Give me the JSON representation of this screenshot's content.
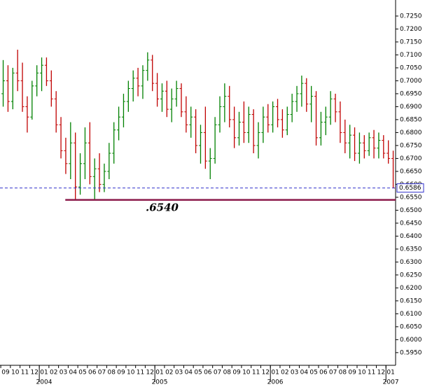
{
  "chart_data": {
    "type": "ohlc",
    "up_color": "#008000",
    "down_color": "#c00000",
    "x": [
      0.25,
      0.75,
      1.25,
      1.75,
      2.25,
      2.75,
      3.25,
      3.75,
      4.25,
      4.75,
      5.25,
      5.75,
      6.25,
      6.75,
      7.25,
      7.75,
      8.25,
      8.75,
      9.25,
      9.75,
      10.25,
      10.75,
      11.25,
      11.75,
      12.25,
      12.75,
      13.25,
      13.75,
      14.25,
      14.75,
      15.25,
      15.75,
      16.25,
      16.75,
      17.25,
      17.75,
      18.25,
      18.75,
      19.25,
      19.75,
      20.25,
      20.75,
      21.25,
      21.75,
      22.25,
      22.75,
      23.25,
      23.75,
      24.25,
      24.75,
      25.25,
      25.75,
      26.25,
      26.75,
      27.25,
      27.75,
      28.25,
      28.75,
      29.25,
      29.75,
      30.25,
      30.75,
      31.25,
      31.75,
      32.25,
      32.75,
      33.25,
      33.75,
      34.25,
      34.75,
      35.25,
      35.75,
      36.25,
      36.75,
      37.25,
      37.75,
      38.25,
      38.75,
      39.25,
      39.75,
      40.25,
      40.75
    ],
    "open": [
      0.695,
      0.7,
      0.692,
      0.703,
      0.7,
      0.69,
      0.686,
      0.698,
      0.703,
      0.706,
      0.7,
      0.693,
      0.683,
      0.673,
      0.668,
      0.676,
      0.659,
      0.668,
      0.676,
      0.663,
      0.666,
      0.66,
      0.665,
      0.672,
      0.681,
      0.686,
      0.692,
      0.697,
      0.701,
      0.698,
      0.704,
      0.708,
      0.699,
      0.693,
      0.696,
      0.689,
      0.693,
      0.697,
      0.688,
      0.683,
      0.686,
      0.675,
      0.68,
      0.669,
      0.67,
      0.683,
      0.69,
      0.694,
      0.685,
      0.678,
      0.684,
      0.68,
      0.687,
      0.675,
      0.68,
      0.686,
      0.683,
      0.69,
      0.685,
      0.681,
      0.687,
      0.692,
      0.695,
      0.699,
      0.691,
      0.694,
      0.678,
      0.684,
      0.686,
      0.693,
      0.688,
      0.68,
      0.676,
      0.679,
      0.672,
      0.676,
      0.673,
      0.678,
      0.674,
      0.677,
      0.672,
      0.67
    ],
    "high": [
      0.708,
      0.706,
      0.705,
      0.712,
      0.707,
      0.694,
      0.7,
      0.706,
      0.709,
      0.709,
      0.704,
      0.696,
      0.686,
      0.678,
      0.684,
      0.68,
      0.672,
      0.682,
      0.684,
      0.67,
      0.672,
      0.668,
      0.676,
      0.684,
      0.69,
      0.695,
      0.7,
      0.704,
      0.705,
      0.706,
      0.711,
      0.71,
      0.703,
      0.699,
      0.7,
      0.697,
      0.7,
      0.699,
      0.694,
      0.69,
      0.689,
      0.683,
      0.69,
      0.674,
      0.686,
      0.694,
      0.699,
      0.698,
      0.69,
      0.688,
      0.692,
      0.69,
      0.689,
      0.684,
      0.69,
      0.691,
      0.692,
      0.693,
      0.689,
      0.69,
      0.695,
      0.698,
      0.702,
      0.701,
      0.698,
      0.696,
      0.688,
      0.69,
      0.696,
      0.695,
      0.692,
      0.685,
      0.683,
      0.682,
      0.68,
      0.679,
      0.68,
      0.681,
      0.68,
      0.679,
      0.677,
      0.673
    ],
    "low": [
      0.69,
      0.688,
      0.689,
      0.696,
      0.688,
      0.68,
      0.685,
      0.694,
      0.696,
      0.698,
      0.69,
      0.68,
      0.67,
      0.664,
      0.662,
      0.654,
      0.656,
      0.662,
      0.66,
      0.654,
      0.657,
      0.657,
      0.662,
      0.668,
      0.677,
      0.682,
      0.688,
      0.692,
      0.694,
      0.693,
      0.7,
      0.696,
      0.69,
      0.688,
      0.686,
      0.684,
      0.69,
      0.686,
      0.68,
      0.678,
      0.672,
      0.668,
      0.666,
      0.662,
      0.668,
      0.68,
      0.684,
      0.682,
      0.674,
      0.675,
      0.676,
      0.676,
      0.672,
      0.67,
      0.676,
      0.68,
      0.68,
      0.682,
      0.678,
      0.679,
      0.684,
      0.688,
      0.69,
      0.688,
      0.684,
      0.675,
      0.675,
      0.679,
      0.683,
      0.684,
      0.676,
      0.672,
      0.67,
      0.669,
      0.668,
      0.67,
      0.671,
      0.67,
      0.67,
      0.67,
      0.668,
      0.6586
    ],
    "close": [
      0.7,
      0.692,
      0.703,
      0.7,
      0.69,
      0.686,
      0.698,
      0.703,
      0.706,
      0.7,
      0.693,
      0.683,
      0.673,
      0.668,
      0.676,
      0.659,
      0.668,
      0.676,
      0.663,
      0.666,
      0.66,
      0.665,
      0.672,
      0.681,
      0.686,
      0.692,
      0.697,
      0.701,
      0.698,
      0.704,
      0.708,
      0.699,
      0.693,
      0.696,
      0.689,
      0.693,
      0.697,
      0.688,
      0.683,
      0.686,
      0.675,
      0.68,
      0.669,
      0.67,
      0.683,
      0.69,
      0.694,
      0.685,
      0.678,
      0.684,
      0.68,
      0.687,
      0.675,
      0.68,
      0.686,
      0.683,
      0.69,
      0.685,
      0.681,
      0.687,
      0.692,
      0.695,
      0.699,
      0.691,
      0.694,
      0.678,
      0.684,
      0.686,
      0.693,
      0.688,
      0.68,
      0.676,
      0.679,
      0.672,
      0.676,
      0.673,
      0.678,
      0.674,
      0.677,
      0.672,
      0.67,
      0.6586
    ],
    "xlim": [
      -0.08,
      41
    ],
    "ylim": [
      0.5901,
      0.7312
    ],
    "xticks": [
      {
        "value": 0,
        "label": "09"
      },
      {
        "value": 1,
        "label": "10"
      },
      {
        "value": 2,
        "label": "11"
      },
      {
        "value": 3,
        "label": "12"
      },
      {
        "value": 4,
        "label": "01"
      },
      {
        "value": 5,
        "label": "02"
      },
      {
        "value": 6,
        "label": "03"
      },
      {
        "value": 7,
        "label": "04"
      },
      {
        "value": 8,
        "label": "05"
      },
      {
        "value": 9,
        "label": "06"
      },
      {
        "value": 10,
        "label": "07"
      },
      {
        "value": 11,
        "label": "08"
      },
      {
        "value": 12,
        "label": "09"
      },
      {
        "value": 13,
        "label": "10"
      },
      {
        "value": 14,
        "label": "11"
      },
      {
        "value": 15,
        "label": "12"
      },
      {
        "value": 16,
        "label": "01"
      },
      {
        "value": 17,
        "label": "02"
      },
      {
        "value": 18,
        "label": "03"
      },
      {
        "value": 19,
        "label": "04"
      },
      {
        "value": 20,
        "label": "05"
      },
      {
        "value": 21,
        "label": "06"
      },
      {
        "value": 22,
        "label": "07"
      },
      {
        "value": 23,
        "label": "08"
      },
      {
        "value": 24,
        "label": "09"
      },
      {
        "value": 25,
        "label": "10"
      },
      {
        "value": 26,
        "label": "11"
      },
      {
        "value": 27,
        "label": "12"
      },
      {
        "value": 28,
        "label": "01"
      },
      {
        "value": 29,
        "label": "02"
      },
      {
        "value": 30,
        "label": "03"
      },
      {
        "value": 31,
        "label": "04"
      },
      {
        "value": 32,
        "label": "05"
      },
      {
        "value": 33,
        "label": "06"
      },
      {
        "value": 34,
        "label": "07"
      },
      {
        "value": 35,
        "label": "08"
      },
      {
        "value": 36,
        "label": "09"
      },
      {
        "value": 37,
        "label": "10"
      },
      {
        "value": 38,
        "label": "11"
      },
      {
        "value": 39,
        "label": "12"
      },
      {
        "value": 40,
        "label": "01"
      }
    ],
    "year_ticks": [
      {
        "value": 4,
        "label": "2004"
      },
      {
        "value": 16,
        "label": "2005"
      },
      {
        "value": 28,
        "label": "2006"
      },
      {
        "value": 40,
        "label": "2007"
      }
    ],
    "yticks": [
      {
        "value": 0.595,
        "label": "0.5950"
      },
      {
        "value": 0.6,
        "label": "0.6000"
      },
      {
        "value": 0.605,
        "label": "0.6050"
      },
      {
        "value": 0.61,
        "label": "0.6100"
      },
      {
        "value": 0.615,
        "label": "0.6150"
      },
      {
        "value": 0.62,
        "label": "0.6200"
      },
      {
        "value": 0.625,
        "label": "0.6250"
      },
      {
        "value": 0.63,
        "label": "0.6300"
      },
      {
        "value": 0.635,
        "label": "0.6350"
      },
      {
        "value": 0.64,
        "label": "0.6400"
      },
      {
        "value": 0.645,
        "label": "0.6450"
      },
      {
        "value": 0.65,
        "label": "0.6500"
      },
      {
        "value": 0.655,
        "label": "0.6550"
      },
      {
        "value": 0.66,
        "label": "0.6600"
      },
      {
        "value": 0.665,
        "label": "0.6650"
      },
      {
        "value": 0.67,
        "label": "0.6700"
      },
      {
        "value": 0.675,
        "label": "0.6750"
      },
      {
        "value": 0.68,
        "label": "0.6800"
      },
      {
        "value": 0.685,
        "label": "0.6850"
      },
      {
        "value": 0.69,
        "label": "0.6900"
      },
      {
        "value": 0.695,
        "label": "0.6950"
      },
      {
        "value": 0.7,
        "label": "0.7000"
      },
      {
        "value": 0.705,
        "label": "0.7050"
      },
      {
        "value": 0.71,
        "label": "0.7100"
      },
      {
        "value": 0.715,
        "label": "0.7150"
      },
      {
        "value": 0.72,
        "label": "0.7200"
      },
      {
        "value": 0.725,
        "label": "0.7250"
      }
    ],
    "last_price": {
      "value": 0.6586,
      "label": "0.6586",
      "color": "#3333cc"
    },
    "support": {
      "value": 0.654,
      "label": ".6540",
      "x_start": 6.7,
      "color": "#8b1a4a"
    }
  }
}
